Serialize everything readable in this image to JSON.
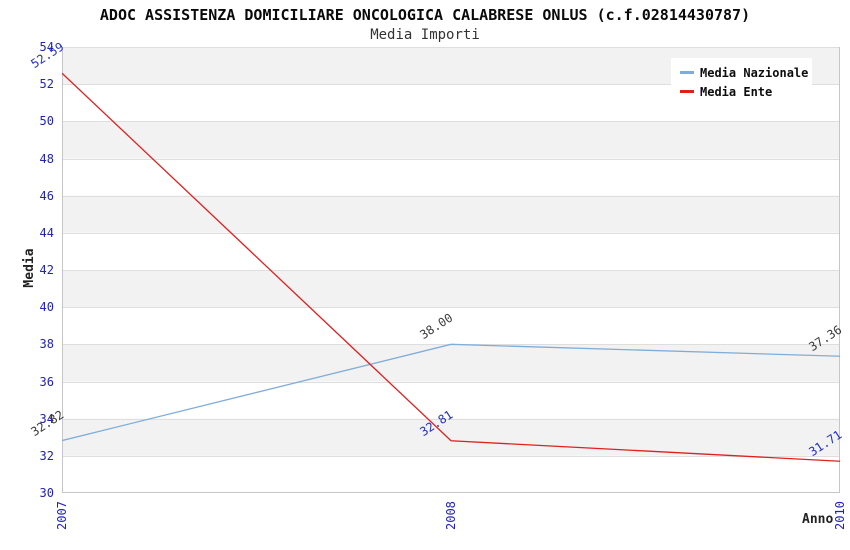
{
  "chart_data": {
    "type": "line",
    "title": "ADOC ASSISTENZA DOMICILIARE ONCOLOGICA CALABRESE ONLUS (c.f.02814430787)",
    "subtitle": "Media Importi",
    "xlabel": "Anno",
    "ylabel": "Media",
    "categories": [
      "2007",
      "2008",
      "2010"
    ],
    "series": [
      {
        "name": "Media Nazionale",
        "color": "#7fadd9",
        "label_color": "#3c3c3c",
        "values": [
          32.82,
          38.0,
          37.36
        ],
        "labels": [
          "32.82",
          "38.00",
          "37.36"
        ]
      },
      {
        "name": "Media Ente",
        "color": "#e02020",
        "label_color": "#2233bb",
        "values": [
          52.59,
          32.81,
          31.71
        ],
        "labels": [
          "52.59",
          "32.81",
          "31.71"
        ]
      }
    ],
    "ylim": [
      30,
      54
    ],
    "ytick_step": 2,
    "yticks": [
      "54",
      "52",
      "50",
      "48",
      "46",
      "44",
      "42",
      "40",
      "38",
      "36",
      "34",
      "32",
      "30"
    ],
    "legend_position": "top-right",
    "grid": "horizontal-bands",
    "colors": {
      "band_gray": "#f2f2f2",
      "band_white": "#ffffff",
      "gridline": "#dedede",
      "frame": "#c6c6c6",
      "tick_text": "#2222bb",
      "title_text": "#0a0a0a",
      "subtitle_text": "#333333",
      "axis_label_text": "#222222"
    }
  }
}
